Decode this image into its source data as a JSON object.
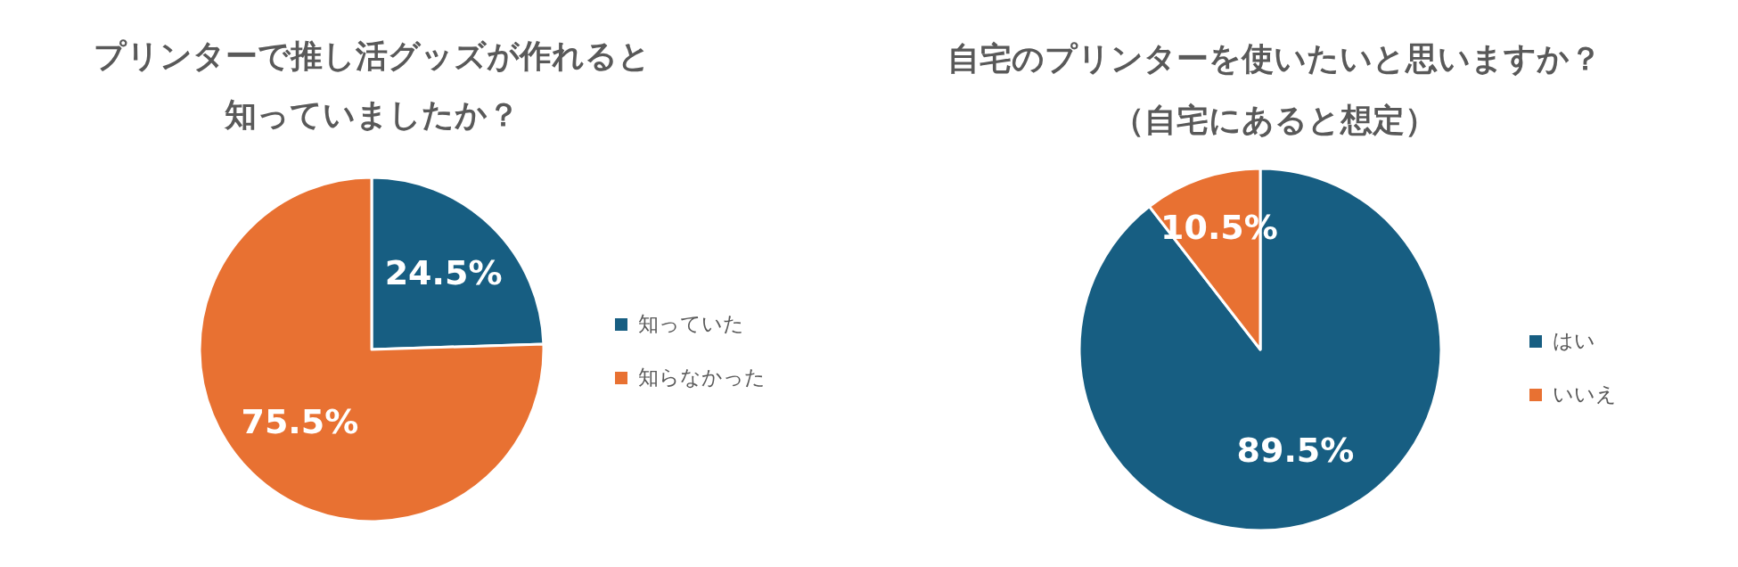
{
  "chart_data": [
    {
      "type": "pie",
      "title": "プリンターで推し活グッズが作れると知っていましたか？",
      "categories": [
        "知っていた",
        "知らなかった"
      ],
      "values": [
        24.5,
        75.5
      ],
      "colors": [
        "#175e82",
        "#e87132"
      ],
      "value_labels": [
        "24.5%",
        "75.5%"
      ],
      "legend": "right"
    },
    {
      "type": "pie",
      "title": "自宅のプリンターを使いたいと思いますか？（自宅にあると想定）",
      "categories": [
        "はい",
        "いいえ"
      ],
      "values": [
        89.5,
        10.5
      ],
      "colors": [
        "#175e82",
        "#e87132"
      ],
      "value_labels": [
        "89.5%",
        "10.5%"
      ],
      "legend": "right"
    }
  ]
}
